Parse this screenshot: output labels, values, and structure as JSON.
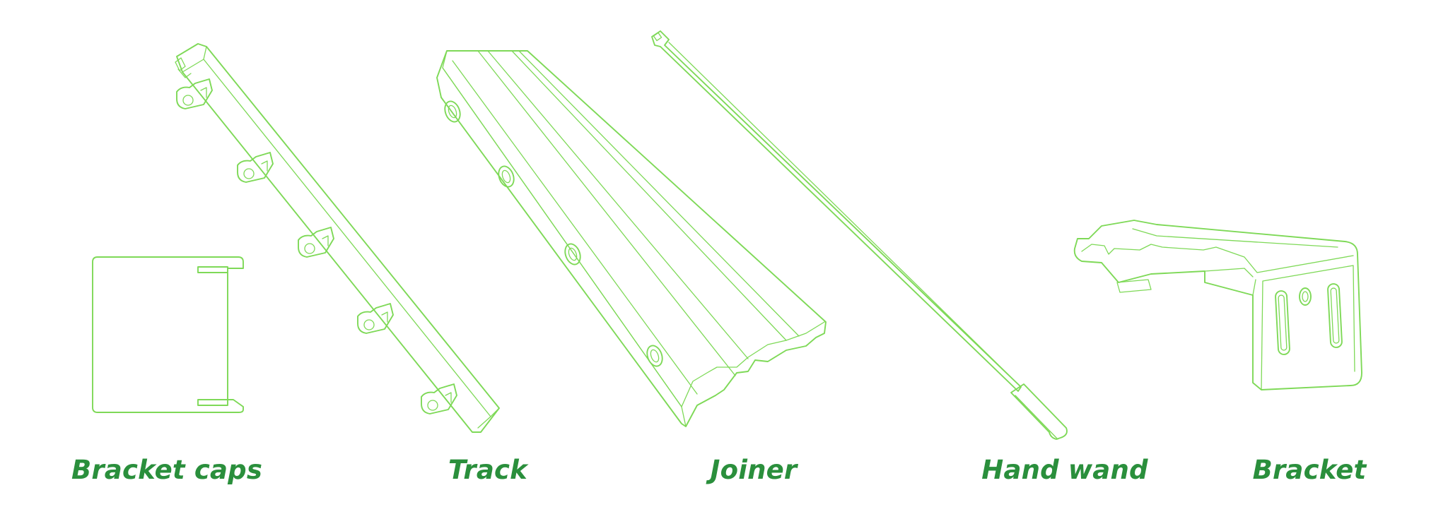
{
  "colors": {
    "line": "#7ed957",
    "label": "#2a8f3c",
    "background": "#ffffff"
  },
  "parts": [
    {
      "id": "bracket-caps",
      "label": "Bracket caps"
    },
    {
      "id": "track",
      "label": "Track"
    },
    {
      "id": "joiner",
      "label": "Joiner"
    },
    {
      "id": "hand-wand",
      "label": "Hand wand"
    },
    {
      "id": "bracket",
      "label": "Bracket"
    }
  ]
}
